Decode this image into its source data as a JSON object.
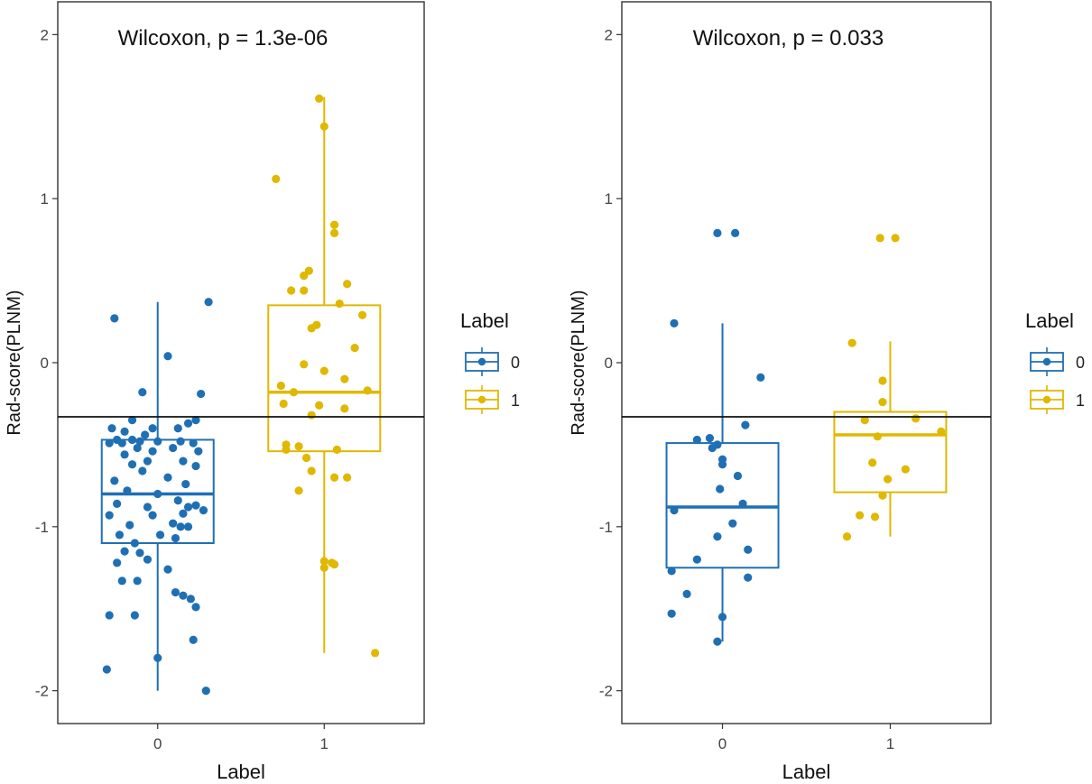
{
  "chart_data": [
    {
      "type": "boxplot",
      "title": "Wilcoxon, p = 1.3e-06",
      "xlabel": "Label",
      "ylabel": "Rad-score(PLNM)",
      "ylim": [
        -2.2,
        2.2
      ],
      "yticks": [
        2,
        1,
        0,
        -1,
        -2
      ],
      "ytick_labels": [
        "2",
        "1",
        "0",
        "-1",
        "-2"
      ],
      "categories": [
        "0",
        "1"
      ],
      "cutoff_line": -0.33,
      "colors": {
        "0": "#1f6fb4",
        "1": "#e0b800"
      },
      "boxes": [
        {
          "label": "0",
          "whisker_low": -2.0,
          "q1": -1.1,
          "median": -0.8,
          "q3": -0.47,
          "whisker_high": 0.37
        },
        {
          "label": "1",
          "whisker_low": -1.77,
          "q1": -0.54,
          "median": -0.18,
          "q3": 0.35,
          "whisker_high": 1.62
        }
      ],
      "points": {
        "0": [
          [
            -0.17,
            0.27
          ],
          [
            0.2,
            0.37
          ],
          [
            0.04,
            0.04
          ],
          [
            -0.06,
            -0.18
          ],
          [
            0.17,
            -0.19
          ],
          [
            -0.1,
            -0.35
          ],
          [
            0.15,
            -0.35
          ],
          [
            0.12,
            -0.37
          ],
          [
            -0.18,
            -0.4
          ],
          [
            -0.02,
            -0.4
          ],
          [
            0.08,
            -0.4
          ],
          [
            -0.13,
            -0.42
          ],
          [
            -0.05,
            -0.44
          ],
          [
            -0.16,
            -0.47
          ],
          [
            -0.1,
            -0.47
          ],
          [
            -0.07,
            -0.48
          ],
          [
            0.0,
            -0.48
          ],
          [
            0.09,
            -0.48
          ],
          [
            -0.19,
            -0.49
          ],
          [
            -0.14,
            -0.49
          ],
          [
            0.14,
            -0.49
          ],
          [
            -0.08,
            -0.52
          ],
          [
            0.06,
            -0.52
          ],
          [
            -0.02,
            -0.54
          ],
          [
            0.16,
            -0.54
          ],
          [
            -0.13,
            -0.56
          ],
          [
            -0.04,
            -0.6
          ],
          [
            0.1,
            -0.6
          ],
          [
            -0.1,
            -0.62
          ],
          [
            0.15,
            -0.63
          ],
          [
            -0.06,
            -0.66
          ],
          [
            0.04,
            -0.7
          ],
          [
            -0.17,
            -0.72
          ],
          [
            0.11,
            -0.74
          ],
          [
            -0.12,
            -0.78
          ],
          [
            0.0,
            -0.8
          ],
          [
            0.08,
            -0.84
          ],
          [
            -0.16,
            -0.86
          ],
          [
            0.15,
            -0.87
          ],
          [
            -0.04,
            -0.88
          ],
          [
            0.12,
            -0.88
          ],
          [
            0.18,
            -0.9
          ],
          [
            -0.19,
            -0.93
          ],
          [
            0.1,
            -0.92
          ],
          [
            -0.02,
            -0.93
          ],
          [
            0.06,
            -0.98
          ],
          [
            -0.11,
            -0.99
          ],
          [
            0.09,
            -1.0
          ],
          [
            0.12,
            -1.0
          ],
          [
            -0.15,
            -1.05
          ],
          [
            0.01,
            -1.05
          ],
          [
            0.07,
            -1.07
          ],
          [
            -0.09,
            -1.1
          ],
          [
            -0.13,
            -1.15
          ],
          [
            -0.07,
            -1.16
          ],
          [
            -0.04,
            -1.2
          ],
          [
            -0.16,
            -1.22
          ],
          [
            0.04,
            -1.26
          ],
          [
            -0.14,
            -1.33
          ],
          [
            -0.08,
            -1.33
          ],
          [
            0.07,
            -1.4
          ],
          [
            0.1,
            -1.42
          ],
          [
            0.13,
            -1.44
          ],
          [
            0.15,
            -1.49
          ],
          [
            -0.19,
            -1.54
          ],
          [
            -0.09,
            -1.54
          ],
          [
            0.14,
            -1.69
          ],
          [
            0.0,
            -1.8
          ],
          [
            -0.2,
            -1.87
          ],
          [
            0.19,
            -2.0
          ]
        ],
        "1": [
          [
            -0.02,
            1.61
          ],
          [
            0.0,
            1.44
          ],
          [
            -0.19,
            1.12
          ],
          [
            0.04,
            0.84
          ],
          [
            0.04,
            0.79
          ],
          [
            -0.06,
            0.56
          ],
          [
            -0.08,
            0.53
          ],
          [
            -0.13,
            0.44
          ],
          [
            -0.08,
            0.44
          ],
          [
            0.09,
            0.48
          ],
          [
            0.06,
            0.36
          ],
          [
            0.15,
            0.29
          ],
          [
            -0.03,
            0.23
          ],
          [
            -0.05,
            0.21
          ],
          [
            0.12,
            0.09
          ],
          [
            -0.08,
            -0.01
          ],
          [
            0.0,
            -0.05
          ],
          [
            0.08,
            -0.1
          ],
          [
            -0.17,
            -0.14
          ],
          [
            -0.12,
            -0.18
          ],
          [
            0.17,
            -0.17
          ],
          [
            -0.16,
            -0.25
          ],
          [
            -0.02,
            -0.26
          ],
          [
            0.08,
            -0.28
          ],
          [
            -0.05,
            -0.32
          ],
          [
            -0.15,
            -0.5
          ],
          [
            -0.1,
            -0.51
          ],
          [
            -0.15,
            -0.53
          ],
          [
            0.05,
            -0.53
          ],
          [
            -0.07,
            -0.58
          ],
          [
            -0.05,
            -0.66
          ],
          [
            0.04,
            -0.7
          ],
          [
            0.09,
            -0.7
          ],
          [
            -0.1,
            -0.78
          ],
          [
            0.0,
            -1.21
          ],
          [
            0.03,
            -1.22
          ],
          [
            0.04,
            -1.23
          ],
          [
            0.0,
            -1.25
          ],
          [
            0.2,
            -1.77
          ]
        ]
      },
      "legend": {
        "title": "Label",
        "entries": [
          "0",
          "1"
        ],
        "position": "right"
      }
    },
    {
      "type": "boxplot",
      "title": "Wilcoxon, p = 0.033",
      "xlabel": "Label",
      "ylabel": "Rad-score(PLNM)",
      "ylim": [
        -2.2,
        2.2
      ],
      "yticks": [
        2,
        1,
        0,
        -1,
        -2
      ],
      "ytick_labels": [
        "2",
        "1",
        "0",
        "-1",
        "-2"
      ],
      "categories": [
        "0",
        "1"
      ],
      "cutoff_line": -0.33,
      "colors": {
        "0": "#1f6fb4",
        "1": "#e0b800"
      },
      "boxes": [
        {
          "label": "0",
          "whisker_low": -1.7,
          "q1": -1.25,
          "median": -0.88,
          "q3": -0.49,
          "whisker_high": 0.24
        },
        {
          "label": "1",
          "whisker_low": -1.06,
          "q1": -0.79,
          "median": -0.44,
          "q3": -0.3,
          "whisker_high": 0.13
        }
      ],
      "points": {
        "0": [
          [
            -0.02,
            0.79
          ],
          [
            0.05,
            0.79
          ],
          [
            -0.19,
            0.24
          ],
          [
            0.15,
            -0.09
          ],
          [
            0.09,
            -0.38
          ],
          [
            -0.05,
            -0.46
          ],
          [
            -0.02,
            -0.5
          ],
          [
            -0.1,
            -0.47
          ],
          [
            -0.04,
            -0.52
          ],
          [
            0.0,
            -0.59
          ],
          [
            0.0,
            -0.62
          ],
          [
            0.06,
            -0.69
          ],
          [
            -0.01,
            -0.77
          ],
          [
            0.08,
            -0.86
          ],
          [
            -0.19,
            -0.9
          ],
          [
            0.04,
            -0.98
          ],
          [
            -0.02,
            -1.06
          ],
          [
            0.1,
            -1.14
          ],
          [
            -0.1,
            -1.2
          ],
          [
            -0.2,
            -1.27
          ],
          [
            0.1,
            -1.31
          ],
          [
            -0.14,
            -1.41
          ],
          [
            -0.2,
            -1.53
          ],
          [
            0.0,
            -1.55
          ],
          [
            -0.02,
            -1.7
          ]
        ],
        "1": [
          [
            -0.04,
            0.76
          ],
          [
            0.02,
            0.76
          ],
          [
            -0.15,
            0.12
          ],
          [
            -0.03,
            -0.11
          ],
          [
            -0.03,
            -0.24
          ],
          [
            -0.1,
            -0.35
          ],
          [
            0.1,
            -0.34
          ],
          [
            0.2,
            -0.42
          ],
          [
            -0.05,
            -0.45
          ],
          [
            -0.07,
            -0.61
          ],
          [
            0.06,
            -0.65
          ],
          [
            -0.01,
            -0.71
          ],
          [
            -0.03,
            -0.81
          ],
          [
            -0.12,
            -0.93
          ],
          [
            -0.06,
            -0.94
          ],
          [
            -0.17,
            -1.06
          ]
        ]
      },
      "legend": {
        "title": "Label",
        "entries": [
          "0",
          "1"
        ],
        "position": "right"
      }
    }
  ]
}
